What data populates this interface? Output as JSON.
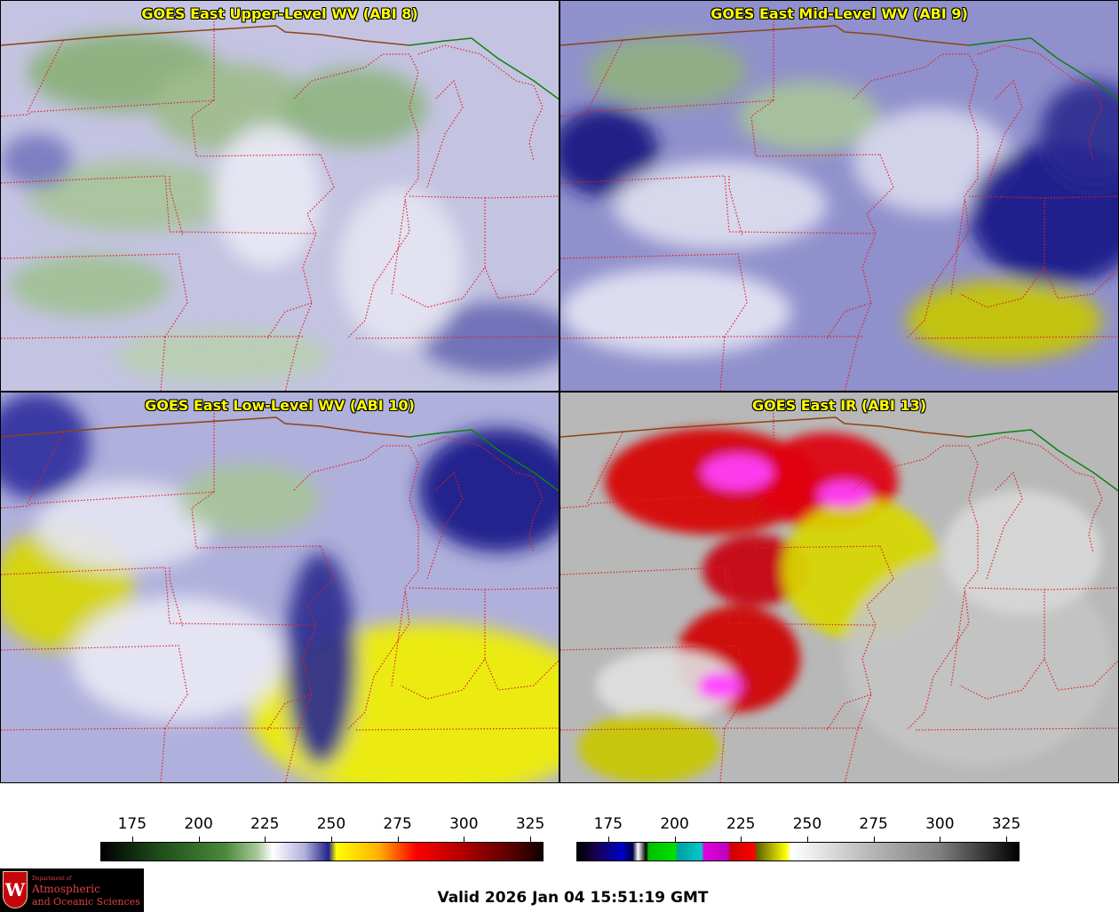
{
  "panels": [
    {
      "title": "GOES East Upper-Level WV (ABI 8)",
      "palette": "wv",
      "tone": "upper"
    },
    {
      "title": "GOES East Mid-Level WV (ABI 9)",
      "palette": "wv",
      "tone": "mid"
    },
    {
      "title": "GOES East Low-Level WV (ABI 10)",
      "palette": "wv",
      "tone": "low"
    },
    {
      "title": "GOES East IR (ABI 13)",
      "palette": "ir",
      "tone": "ir"
    }
  ],
  "colorbars": {
    "wv": {
      "ticks": [
        "175",
        "200",
        "225",
        "250",
        "275",
        "300",
        "325"
      ],
      "tick_values": [
        175,
        200,
        225,
        250,
        275,
        300,
        325
      ],
      "range": [
        163,
        330
      ],
      "stops": [
        {
          "v": 163,
          "c": "#000000"
        },
        {
          "v": 185,
          "c": "#1e4d1a"
        },
        {
          "v": 210,
          "c": "#4a8a3a"
        },
        {
          "v": 222,
          "c": "#a8c89a"
        },
        {
          "v": 228,
          "c": "#ffffff"
        },
        {
          "v": 240,
          "c": "#b0b0dc"
        },
        {
          "v": 249,
          "c": "#22228a"
        },
        {
          "v": 252,
          "c": "#ffff00"
        },
        {
          "v": 268,
          "c": "#ffb000"
        },
        {
          "v": 282,
          "c": "#ff0000"
        },
        {
          "v": 300,
          "c": "#b00000"
        },
        {
          "v": 320,
          "c": "#500000"
        },
        {
          "v": 330,
          "c": "#100000"
        }
      ]
    },
    "ir": {
      "ticks": [
        "175",
        "200",
        "225",
        "250",
        "275",
        "300",
        "325"
      ],
      "tick_values": [
        175,
        200,
        225,
        250,
        275,
        300,
        325
      ],
      "range": [
        163,
        330
      ],
      "stops": [
        {
          "v": 163,
          "c": "#000000"
        },
        {
          "v": 170,
          "c": "#1a0050"
        },
        {
          "v": 180,
          "c": "#0000c8"
        },
        {
          "v": 184,
          "c": "#000040"
        },
        {
          "v": 186,
          "c": "#ffffff"
        },
        {
          "v": 189,
          "c": "#000000"
        },
        {
          "v": 190,
          "c": "#00c000"
        },
        {
          "v": 200,
          "c": "#00e000"
        },
        {
          "v": 201,
          "c": "#00a0a0"
        },
        {
          "v": 210,
          "c": "#00c8c8"
        },
        {
          "v": 211,
          "c": "#e000e0"
        },
        {
          "v": 220,
          "c": "#c000c0"
        },
        {
          "v": 221,
          "c": "#d00000"
        },
        {
          "v": 230,
          "c": "#ff0000"
        },
        {
          "v": 231,
          "c": "#606000"
        },
        {
          "v": 242,
          "c": "#ffff00"
        },
        {
          "v": 244,
          "c": "#ffffff"
        },
        {
          "v": 270,
          "c": "#c0c0c0"
        },
        {
          "v": 300,
          "c": "#808080"
        },
        {
          "v": 330,
          "c": "#000000"
        }
      ]
    }
  },
  "valid_time": "Valid 2026 Jan 04 15:51:19 GMT",
  "logo": {
    "department": "Department of",
    "line1": "Atmospheric",
    "line2": "and Oceanic Sciences",
    "seal_letter": "W"
  },
  "map_colors": {
    "state_borders": "#e02020",
    "intl_border": "#8b4513",
    "canada_border": "#108010"
  }
}
